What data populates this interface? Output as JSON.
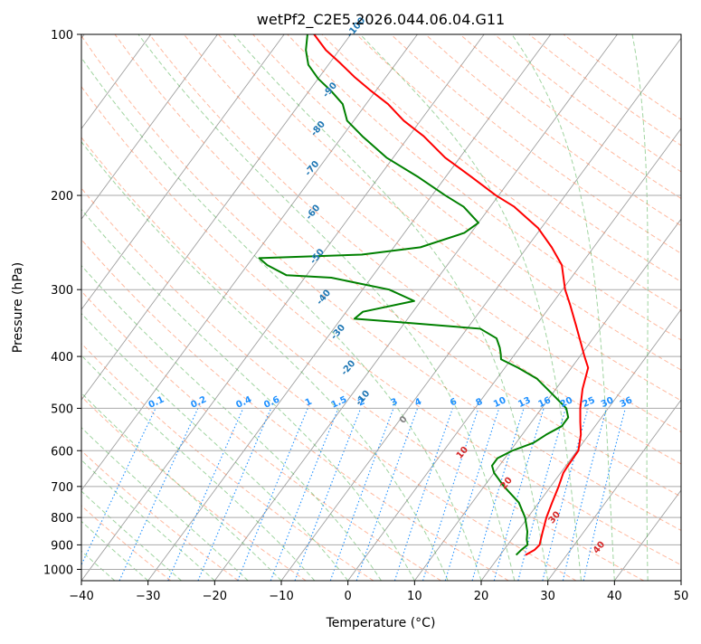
{
  "chart_data": {
    "type": "skew-t",
    "title": "wetPf2_C2E5.2026.044.06.04.G11",
    "xlabel": "Temperature (°C)",
    "ylabel": "Pressure (hPa)",
    "xlim": [
      -40,
      50
    ],
    "ylim": [
      1050,
      100
    ],
    "x_ticks": [
      "−40",
      "−30",
      "−20",
      "−10",
      "0",
      "10",
      "20",
      "30",
      "40",
      "50"
    ],
    "y_ticks": [
      "100",
      "200",
      "300",
      "400",
      "500",
      "600",
      "700",
      "800",
      "900",
      "1000"
    ],
    "grid": true,
    "series": [
      {
        "role": "temperature",
        "color": "#ff0000",
        "points": [
          [
            940,
            23.8
          ],
          [
            920,
            24.6
          ],
          [
            900,
            24.8
          ],
          [
            880,
            24.4
          ],
          [
            850,
            23.8
          ],
          [
            800,
            22.8
          ],
          [
            750,
            22.0
          ],
          [
            700,
            21.2
          ],
          [
            660,
            20.4
          ],
          [
            640,
            20.3
          ],
          [
            600,
            20.2
          ],
          [
            560,
            18.8
          ],
          [
            530,
            17.3
          ],
          [
            500,
            15.8
          ],
          [
            460,
            14.0
          ],
          [
            420,
            12.5
          ],
          [
            400,
            10.7
          ],
          [
            380,
            8.9
          ],
          [
            350,
            6.0
          ],
          [
            320,
            2.8
          ],
          [
            300,
            0.4
          ],
          [
            270,
            -2.8
          ],
          [
            250,
            -6.3
          ],
          [
            230,
            -10.5
          ],
          [
            210,
            -16.4
          ],
          [
            200,
            -20.4
          ],
          [
            185,
            -26.0
          ],
          [
            170,
            -32.2
          ],
          [
            155,
            -37.8
          ],
          [
            145,
            -42.5
          ],
          [
            135,
            -46.7
          ],
          [
            127,
            -51.0
          ],
          [
            120,
            -54.8
          ],
          [
            113,
            -58.5
          ],
          [
            107,
            -62.0
          ],
          [
            100,
            -65.5
          ]
        ]
      },
      {
        "role": "dewpoint",
        "color": "#008000",
        "points": [
          [
            940,
            22.4
          ],
          [
            920,
            22.6
          ],
          [
            900,
            23.0
          ],
          [
            880,
            22.3
          ],
          [
            850,
            21.5
          ],
          [
            800,
            19.6
          ],
          [
            750,
            17.0
          ],
          [
            700,
            13.0
          ],
          [
            660,
            10.0
          ],
          [
            640,
            8.9
          ],
          [
            620,
            8.9
          ],
          [
            600,
            10.3
          ],
          [
            580,
            12.6
          ],
          [
            560,
            13.6
          ],
          [
            540,
            15.0
          ],
          [
            520,
            15.0
          ],
          [
            500,
            13.7
          ],
          [
            470,
            10.0
          ],
          [
            440,
            6.0
          ],
          [
            420,
            2.0
          ],
          [
            405,
            -1.5
          ],
          [
            395,
            -2.2
          ],
          [
            385,
            -3.0
          ],
          [
            370,
            -4.5
          ],
          [
            355,
            -8.0
          ],
          [
            345,
            -21.0
          ],
          [
            340,
            -28.0
          ],
          [
            330,
            -27.5
          ],
          [
            315,
            -21.0
          ],
          [
            300,
            -26.0
          ],
          [
            285,
            -36.0
          ],
          [
            282,
            -43.0
          ],
          [
            270,
            -47.0
          ],
          [
            262,
            -49.0
          ],
          [
            258,
            -34.0
          ],
          [
            250,
            -26.0
          ],
          [
            235,
            -21.0
          ],
          [
            225,
            -20.0
          ],
          [
            210,
            -24.0
          ],
          [
            200,
            -28.0
          ],
          [
            185,
            -34.0
          ],
          [
            170,
            -41.0
          ],
          [
            155,
            -47.0
          ],
          [
            145,
            -51.0
          ],
          [
            135,
            -53.5
          ],
          [
            128,
            -56.5
          ],
          [
            121,
            -60.0
          ],
          [
            114,
            -63.0
          ],
          [
            107,
            -65.0
          ],
          [
            100,
            -66.5
          ]
        ]
      }
    ],
    "dry_adiabat_labels": [
      "-100",
      "-90",
      "-80",
      "-70",
      "-60",
      "-50",
      "-40",
      "-30",
      "-20",
      "-10",
      "0",
      "10",
      "20",
      "30",
      "40"
    ],
    "mixing_ratio_labels": [
      "0.1",
      "0.2",
      "0.4",
      "0.6",
      "1",
      "1.5",
      "2",
      "3",
      "4",
      "6",
      "8",
      "10",
      "13",
      "16",
      "20",
      "25",
      "30",
      "36"
    ],
    "colors": {
      "temperature": "#ff0000",
      "dewpoint": "#008000",
      "dry_adiabat": "#ff7f50",
      "moist_adiabat": "#2ca02c",
      "mixing_ratio": "#1e90ff",
      "skewed_isotherm": "#808080",
      "adiabat_label_cold": "#1f77b4",
      "adiabat_label_warm": "#d62728",
      "adiabat_label_zero": "#808080"
    }
  }
}
